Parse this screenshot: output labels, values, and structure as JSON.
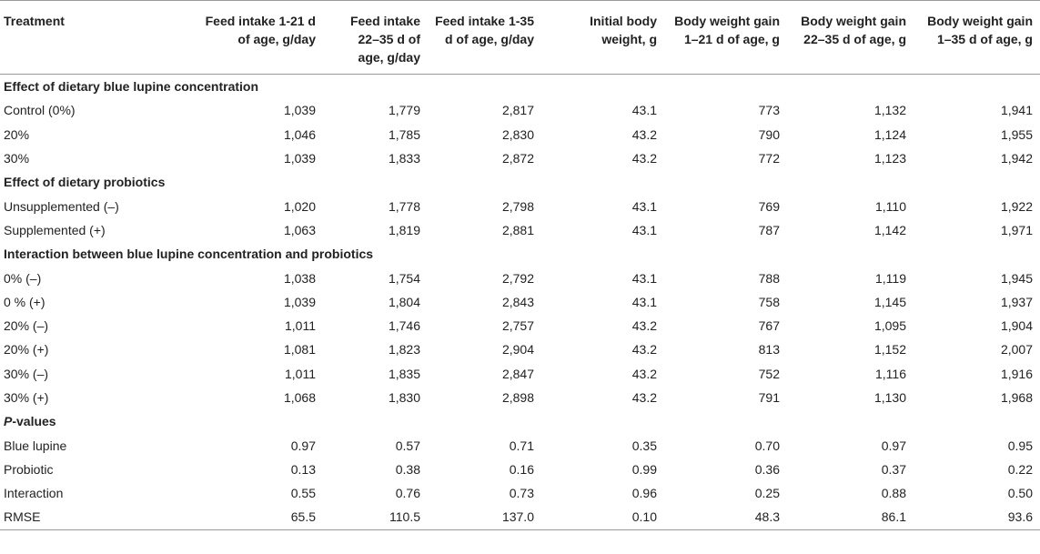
{
  "columns": [
    "Treatment",
    "Feed intake 1-21 d of age, g/day",
    "Feed intake 22–35 d of age, g/day",
    "Feed intake 1-35 d of age, g/day",
    "Initial body weight, g",
    "Body weight gain 1–21 d of age, g",
    "Body weight gain 22–35 d of age, g",
    "Body weight gain 1–35 d of age, g"
  ],
  "sections": [
    {
      "title": "Effect of dietary blue lupine concentration",
      "rows": [
        [
          "Control (0%)",
          "1,039",
          "1,779",
          "2,817",
          "43.1",
          "773",
          "1,132",
          "1,941"
        ],
        [
          "20%",
          "1,046",
          "1,785",
          "2,830",
          "43.2",
          "790",
          "1,124",
          "1,955"
        ],
        [
          "30%",
          "1,039",
          "1,833",
          "2,872",
          "43.2",
          "772",
          "1,123",
          "1,942"
        ]
      ]
    },
    {
      "title": "Effect of dietary probiotics",
      "rows": [
        [
          "Unsupplemented (–)",
          "1,020",
          "1,778",
          "2,798",
          "43.1",
          "769",
          "1,110",
          "1,922"
        ],
        [
          "Supplemented (+)",
          "1,063",
          "1,819",
          "2,881",
          "43.1",
          "787",
          "1,142",
          "1,971"
        ]
      ]
    },
    {
      "title": "Interaction between blue lupine concentration and probiotics",
      "rows": [
        [
          "0% (–)",
          "1,038",
          "1,754",
          "2,792",
          "43.1",
          "788",
          "1,119",
          "1,945"
        ],
        [
          "0 % (+)",
          "1,039",
          "1,804",
          "2,843",
          "43.1",
          "758",
          "1,145",
          "1,937"
        ],
        [
          "20% (–)",
          "1,011",
          "1,746",
          "2,757",
          "43.2",
          "767",
          "1,095",
          "1,904"
        ],
        [
          "20% (+)",
          "1,081",
          "1,823",
          "2,904",
          "43.2",
          "813",
          "1,152",
          "2,007"
        ],
        [
          "30% (–)",
          "1,011",
          "1,835",
          "2,847",
          "43.2",
          "752",
          "1,116",
          "1,916"
        ],
        [
          "30% (+)",
          "1,068",
          "1,830",
          "2,898",
          "43.2",
          "791",
          "1,130",
          "1,968"
        ]
      ]
    },
    {
      "title_italic": "P",
      "title_rest": "-values",
      "rows": [
        [
          "Blue lupine",
          "0.97",
          "0.57",
          "0.71",
          "0.35",
          "0.70",
          "0.97",
          "0.95"
        ],
        [
          "Probiotic",
          "0.13",
          "0.38",
          "0.16",
          "0.99",
          "0.36",
          "0.37",
          "0.22"
        ],
        [
          "Interaction",
          "0.55",
          "0.76",
          "0.73",
          "0.96",
          "0.25",
          "0.88",
          "0.50"
        ],
        [
          "RMSE",
          "65.5",
          "110.5",
          "137.0",
          "0.10",
          "48.3",
          "86.1",
          "93.6"
        ]
      ]
    }
  ]
}
